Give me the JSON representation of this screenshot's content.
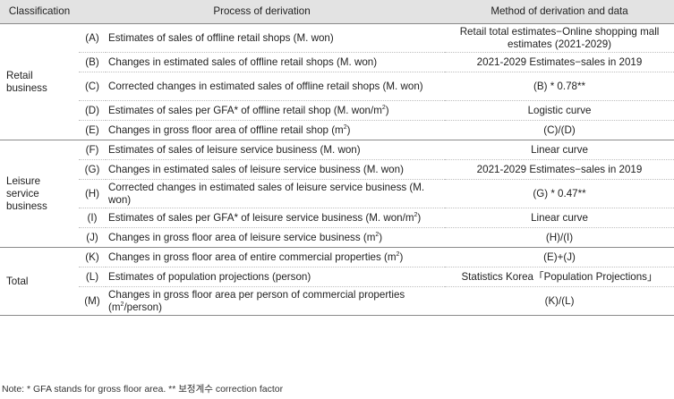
{
  "header": {
    "classification": "Classification",
    "process": "Process of derivation",
    "method": "Method of derivation and data"
  },
  "groups": [
    {
      "name": "Retail business",
      "rows": [
        {
          "code": "(A)",
          "process": "Estimates of sales of offline retail shops (M. won)",
          "method": "Retail total estimates−Online shopping mall estimates (2021-2029)"
        },
        {
          "code": "(B)",
          "process": "Changes in estimated sales of offline retail shops (M. won)",
          "method": "2021-2029 Estimates−sales in 2019"
        },
        {
          "code": "(C)",
          "process": "Corrected changes in estimated sales of offline retail shops (M. won)",
          "method": "(B) * 0.78**"
        },
        {
          "code": "(D)",
          "process": "Estimates of sales per GFA* of offline retail shop (M. won/m",
          "sup": "2",
          "tail": ")",
          "method": "Logistic curve"
        },
        {
          "code": "(E)",
          "process": "Changes in gross floor area of offline retail shop (m",
          "sup": "2",
          "tail": ")",
          "method": "(C)/(D)"
        }
      ]
    },
    {
      "name": "Leisure service business",
      "rows": [
        {
          "code": "(F)",
          "process": "Estimates of sales of leisure service business (M. won)",
          "method": "Linear curve"
        },
        {
          "code": "(G)",
          "process": "Changes in estimated sales of leisure service business (M. won)",
          "method": "2021-2029 Estimates−sales in 2019"
        },
        {
          "code": "(H)",
          "process": "Corrected changes in estimated sales of leisure service business (M. won)",
          "method": "(G) * 0.47**"
        },
        {
          "code": "(I)",
          "process": "Estimates of sales per GFA* of leisure service business (M. won/m",
          "sup": "2",
          "tail": ")",
          "method": "Linear curve"
        },
        {
          "code": "(J)",
          "process": "Changes in gross floor area of leisure service business (m",
          "sup": "2",
          "tail": ")",
          "method": "(H)/(I)"
        }
      ]
    },
    {
      "name": "Total",
      "rows": [
        {
          "code": "(K)",
          "process": "Changes in gross floor area of entire commercial properties (m",
          "sup": "2",
          "tail": ")",
          "method": "(E)+(J)"
        },
        {
          "code": "(L)",
          "process": "Estimates of population projections (person)",
          "method": "Statistics Korea「Population Projections」"
        },
        {
          "code": "(M)",
          "process": "Changes in gross floor area per person of commercial properties (m",
          "sup": "2",
          "tail": "/person)",
          "method": "(K)/(L)"
        }
      ]
    }
  ],
  "note": "Note: * GFA stands for gross floor area. ** 보정계수 correction factor"
}
